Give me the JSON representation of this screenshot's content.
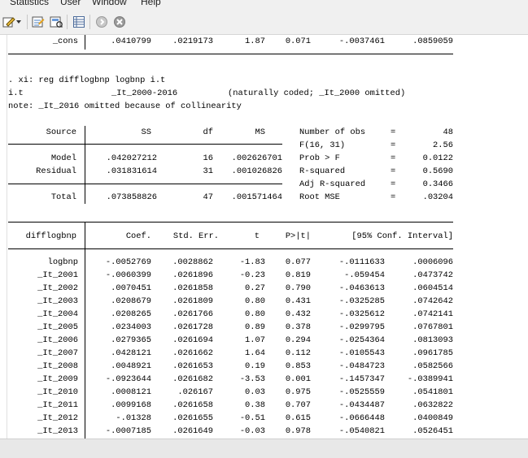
{
  "menu": [
    "Statistics",
    "User",
    "Window",
    "Help"
  ],
  "toolbar": {
    "icons": [
      "do-file-editor-icon",
      "dropdown-arrow-icon",
      "data-editor-icon",
      "data-browser-icon",
      "variables-manager-icon",
      "more-icon",
      "break-icon"
    ]
  },
  "prev_row": {
    "name": "_cons",
    "coef": ".0410799",
    "se": ".0219173",
    "t": "1.87",
    "p": "0.071",
    "lo": "-.0037461",
    "hi": ".0859059"
  },
  "command": ". xi: reg difflogbnp logbnp i.t",
  "xi_line": {
    "var": "i.t",
    "dummies": "_It_2000-2016",
    "note": "(naturally coded; _It_2000 omitted)"
  },
  "note_line": "note: _It_2016 omitted because of collinearity",
  "anova": {
    "headers": {
      "source": "Source",
      "ss": "SS",
      "df": "df",
      "ms": "MS"
    },
    "rows": [
      {
        "source": "Model",
        "ss": ".042027212",
        "df": "16",
        "ms": ".002626701"
      },
      {
        "source": "Residual",
        "ss": ".031831614",
        "df": "31",
        "ms": ".001026826"
      }
    ],
    "total": {
      "source": "Total",
      "ss": ".073858826",
      "df": "47",
      "ms": ".001571464"
    }
  },
  "stats": [
    {
      "label": "Number of obs",
      "eq": "=",
      "value": "48"
    },
    {
      "label": "F(16, 31)",
      "eq": "=",
      "value": "2.56"
    },
    {
      "label": "Prob > F",
      "eq": "=",
      "value": "0.0122"
    },
    {
      "label": "R-squared",
      "eq": "=",
      "value": "0.5690"
    },
    {
      "label": "Adj R-squared",
      "eq": "=",
      "value": "0.3466"
    },
    {
      "label": "Root MSE",
      "eq": "=",
      "value": ".03204"
    }
  ],
  "coef_table": {
    "headers": {
      "name": "difflogbnp",
      "coef": "Coef.",
      "se": "Std. Err.",
      "t": "t",
      "p": "P>|t|",
      "ci": "[95% Conf. Interval]"
    },
    "rows": [
      {
        "name": "logbnp",
        "coef": "-.0052769",
        "se": ".0028862",
        "t": "-1.83",
        "p": "0.077",
        "lo": "-.0111633",
        "hi": ".0006096"
      },
      {
        "name": "_It_2001",
        "coef": "-.0060399",
        "se": ".0261896",
        "t": "-0.23",
        "p": "0.819",
        "lo": "-.059454",
        "hi": ".0473742"
      },
      {
        "name": "_It_2002",
        "coef": ".0070451",
        "se": ".0261858",
        "t": "0.27",
        "p": "0.790",
        "lo": "-.0463613",
        "hi": ".0604514"
      },
      {
        "name": "_It_2003",
        "coef": ".0208679",
        "se": ".0261809",
        "t": "0.80",
        "p": "0.431",
        "lo": "-.0325285",
        "hi": ".0742642"
      },
      {
        "name": "_It_2004",
        "coef": ".0208265",
        "se": ".0261766",
        "t": "0.80",
        "p": "0.432",
        "lo": "-.0325612",
        "hi": ".0742141"
      },
      {
        "name": "_It_2005",
        "coef": ".0234003",
        "se": ".0261728",
        "t": "0.89",
        "p": "0.378",
        "lo": "-.0299795",
        "hi": ".0767801"
      },
      {
        "name": "_It_2006",
        "coef": ".0279365",
        "se": ".0261694",
        "t": "1.07",
        "p": "0.294",
        "lo": "-.0254364",
        "hi": ".0813093"
      },
      {
        "name": "_It_2007",
        "coef": ".0428121",
        "se": ".0261662",
        "t": "1.64",
        "p": "0.112",
        "lo": "-.0105543",
        "hi": ".0961785"
      },
      {
        "name": "_It_2008",
        "coef": ".0048921",
        "se": ".0261653",
        "t": "0.19",
        "p": "0.853",
        "lo": "-.0484723",
        "hi": ".0582566"
      },
      {
        "name": "_It_2009",
        "coef": "-.0923644",
        "se": ".0261682",
        "t": "-3.53",
        "p": "0.001",
        "lo": "-.1457347",
        "hi": "-.0389941"
      },
      {
        "name": "_It_2010",
        "coef": ".0008121",
        "se": ".026167",
        "t": "0.03",
        "p": "0.975",
        "lo": "-.0525559",
        "hi": ".0541801"
      },
      {
        "name": "_It_2011",
        "coef": ".0099168",
        "se": ".0261658",
        "t": "0.38",
        "p": "0.707",
        "lo": "-.0434487",
        "hi": ".0632822"
      },
      {
        "name": "_It_2012",
        "coef": "-.01328",
        "se": ".0261655",
        "t": "-0.51",
        "p": "0.615",
        "lo": "-.0666448",
        "hi": ".0400849"
      },
      {
        "name": "_It_2013",
        "coef": "-.0007185",
        "se": ".0261649",
        "t": "-0.03",
        "p": "0.978",
        "lo": "-.0540821",
        "hi": ".0526451"
      }
    ]
  },
  "colors": {
    "text": "#000000",
    "background": "#ffffff",
    "toolbar": "#f0f0f0"
  }
}
